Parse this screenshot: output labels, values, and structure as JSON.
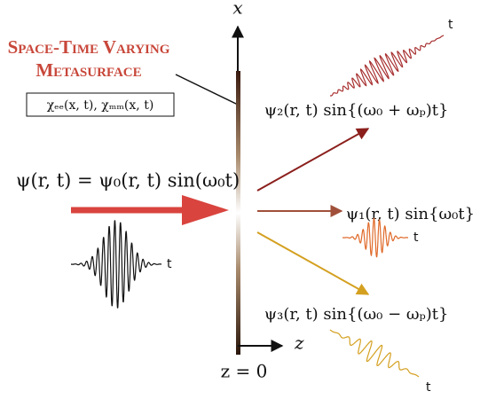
{
  "title_lines": [
    "Space-Time Varying",
    "Metasurface"
  ],
  "susceptibility": "χₑₑ(x, t), χₘₘ(x, t)",
  "axes": {
    "x": "x",
    "z": "z",
    "origin": "z = 0"
  },
  "incident": {
    "formula": "ψ(r, t) = ψ₀(r, t) sin(ω₀t)",
    "time": "t"
  },
  "outputs": [
    {
      "formula": "ψ₂(r, t) sin{(ω₀ + ωₚ)t}",
      "time": "t"
    },
    {
      "formula": "ψ₁(r, t) sin{ω₀t}",
      "time": "t"
    },
    {
      "formula": "ψ₃(r, t) sin{(ω₀ − ωₚ)t}",
      "time": "t"
    }
  ]
}
